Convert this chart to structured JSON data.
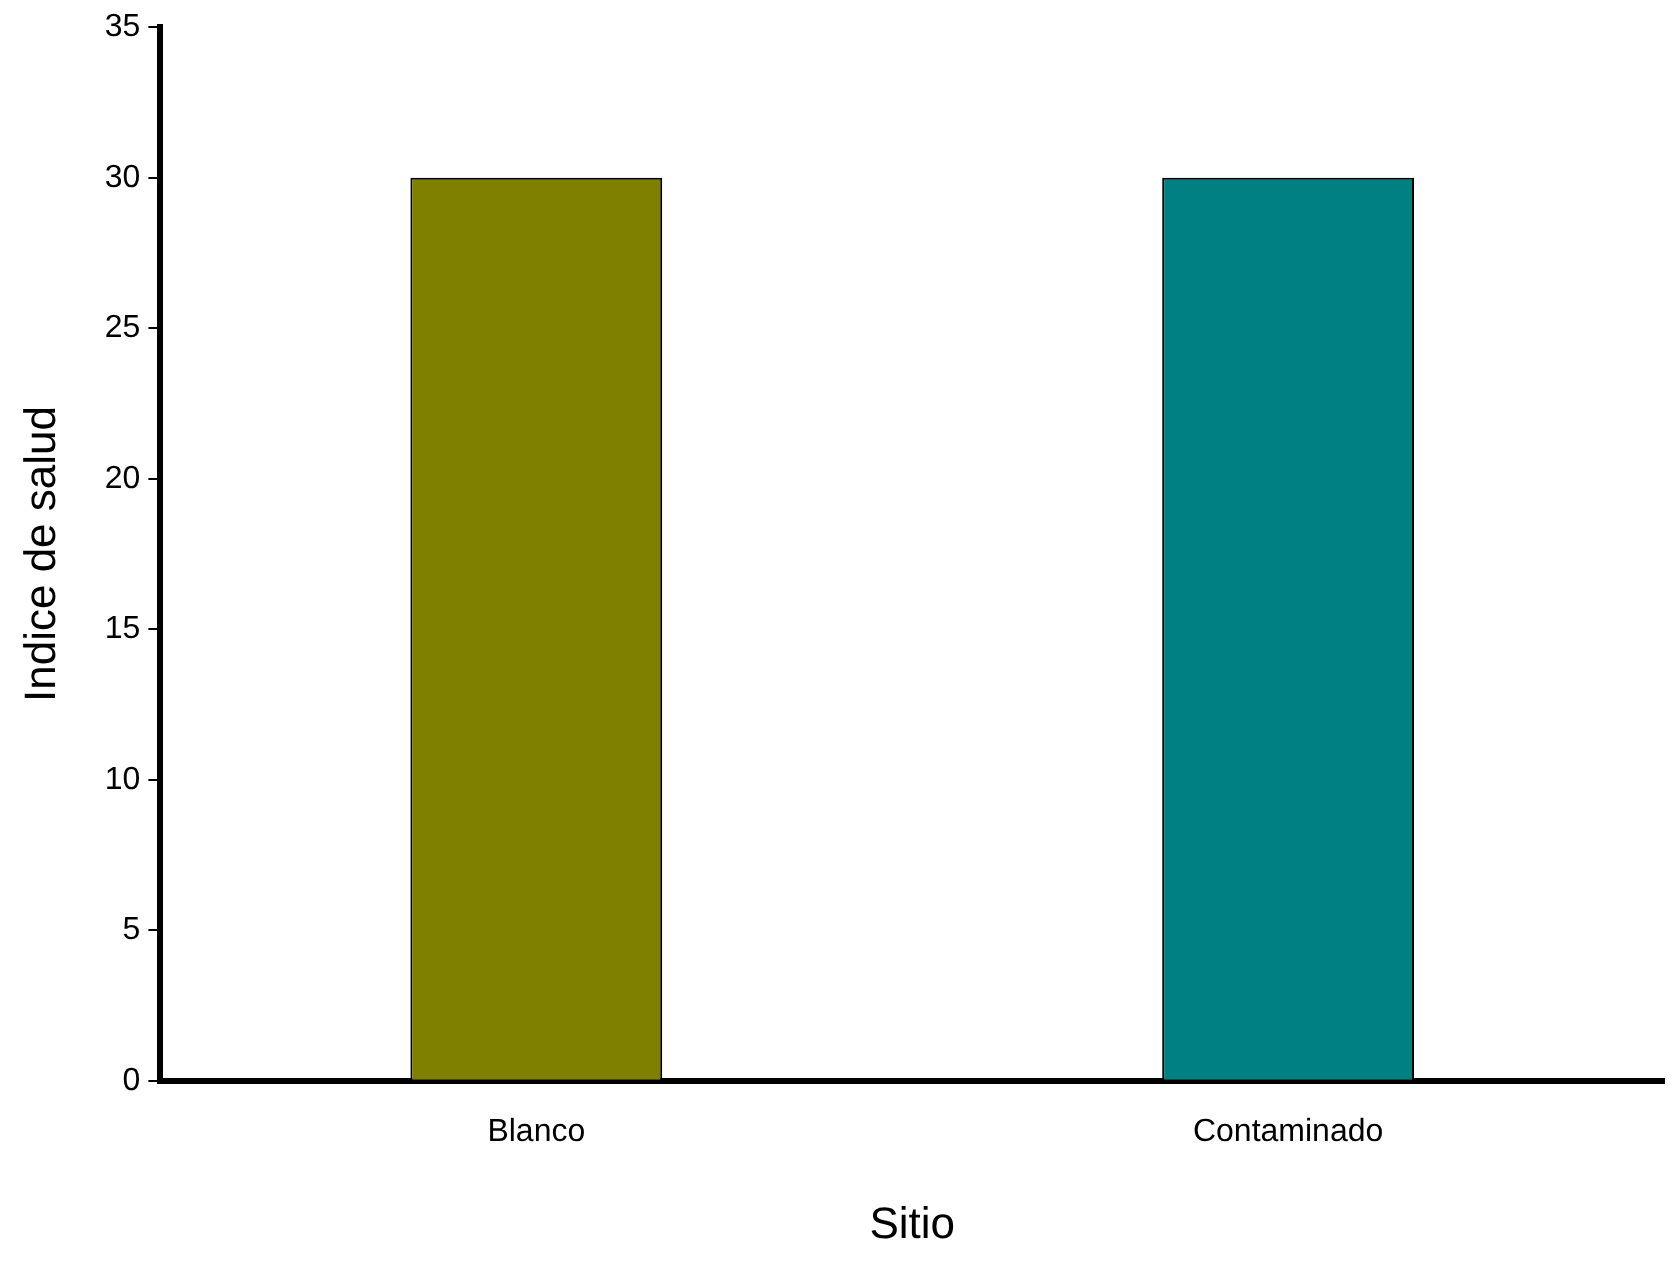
{
  "chart_data": {
    "type": "bar",
    "categories": [
      "Blanco",
      "Contaminado"
    ],
    "values": [
      30,
      30
    ],
    "colors": [
      "#808000",
      "#008080"
    ],
    "xlabel": "Sitio",
    "ylabel": "Indice de salud",
    "ylim": [
      0,
      35
    ],
    "yticks": [
      0,
      5,
      10,
      15,
      20,
      25,
      30,
      35
    ],
    "grid": false,
    "legend": false
  }
}
